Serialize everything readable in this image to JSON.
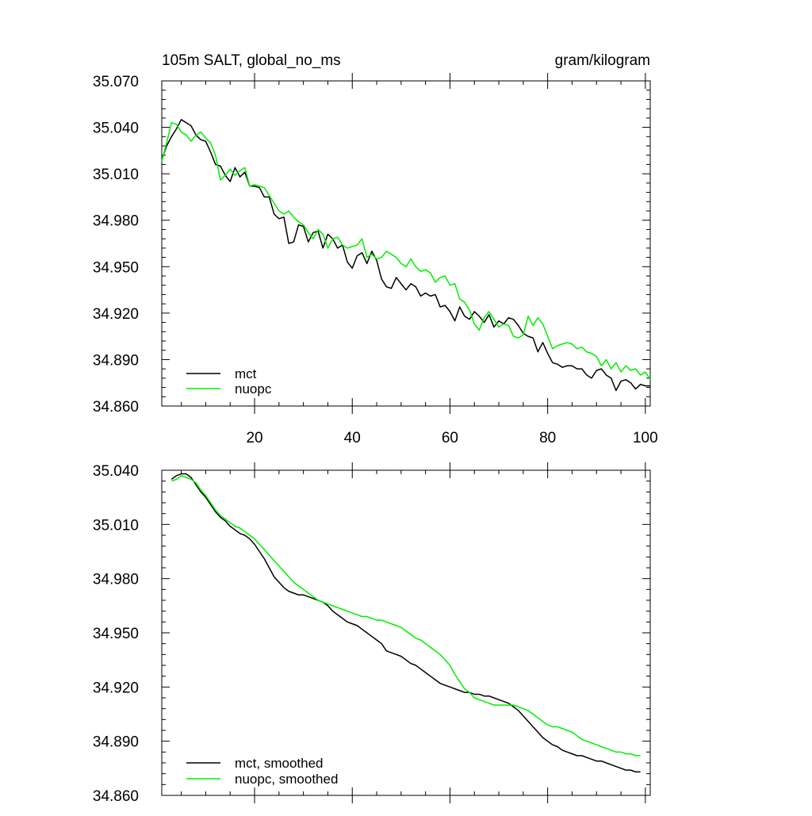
{
  "chart_data": [
    {
      "type": "line",
      "title_left": "105m SALT, global_no_ms",
      "title_right": "gram/kilogram",
      "xlabel": "",
      "ylabel": "",
      "xlim": [
        1,
        101
      ],
      "ylim": [
        34.86,
        35.07
      ],
      "yticks": [
        "35.070",
        "35.040",
        "35.010",
        "34.980",
        "34.950",
        "34.920",
        "34.890",
        "34.860"
      ],
      "xticks": [
        "20",
        "40",
        "60",
        "80",
        "100"
      ],
      "legend": "bottom-left",
      "series": [
        {
          "name": "mct",
          "color": "#000000",
          "x": [
            1,
            2,
            3,
            4,
            5,
            6,
            7,
            8,
            9,
            10,
            11,
            12,
            13,
            14,
            15,
            16,
            17,
            18,
            19,
            20,
            21,
            22,
            23,
            24,
            25,
            26,
            27,
            28,
            29,
            30,
            31,
            32,
            33,
            34,
            35,
            36,
            37,
            38,
            39,
            40,
            41,
            42,
            43,
            44,
            45,
            46,
            47,
            48,
            49,
            50,
            51,
            52,
            53,
            54,
            55,
            56,
            57,
            58,
            59,
            60,
            61,
            62,
            63,
            64,
            65,
            66,
            67,
            68,
            69,
            70,
            71,
            72,
            73,
            74,
            75,
            76,
            77,
            78,
            79,
            80,
            81,
            82,
            83,
            84,
            85,
            86,
            87,
            88,
            89,
            90,
            91,
            92,
            93,
            94,
            95,
            96,
            97,
            98,
            99,
            100,
            101
          ],
          "values": [
            35.019,
            35.028,
            35.034,
            35.039,
            35.045,
            35.043,
            35.041,
            35.035,
            35.032,
            35.031,
            35.024,
            35.016,
            35.015,
            35.009,
            35.005,
            35.014,
            35.008,
            35.011,
            35.002,
            35.002,
            35.001,
            34.995,
            34.995,
            34.984,
            34.981,
            34.982,
            34.965,
            34.966,
            34.977,
            34.976,
            34.966,
            34.972,
            34.973,
            34.962,
            34.971,
            34.968,
            34.962,
            34.964,
            34.953,
            34.949,
            34.957,
            34.959,
            34.952,
            34.96,
            34.954,
            34.942,
            34.937,
            34.936,
            34.943,
            34.939,
            34.935,
            34.939,
            34.937,
            34.931,
            34.933,
            34.931,
            34.932,
            34.924,
            34.925,
            34.921,
            34.915,
            34.924,
            34.918,
            34.916,
            34.921,
            34.918,
            34.914,
            34.919,
            34.911,
            34.915,
            34.913,
            34.917,
            34.916,
            34.912,
            34.907,
            34.905,
            34.904,
            34.895,
            34.901,
            34.894,
            34.888,
            34.887,
            34.885,
            34.886,
            34.886,
            34.884,
            34.884,
            34.88,
            34.878,
            34.883,
            34.884,
            34.88,
            34.878,
            34.87,
            34.876,
            34.877,
            34.875,
            34.871,
            34.874,
            34.873,
            34.873
          ]
        },
        {
          "name": "nuopc",
          "color": "#00ee00",
          "x": [
            1,
            2,
            3,
            4,
            5,
            6,
            7,
            8,
            9,
            10,
            11,
            12,
            13,
            14,
            15,
            16,
            17,
            18,
            19,
            20,
            21,
            22,
            23,
            24,
            25,
            26,
            27,
            28,
            29,
            30,
            31,
            32,
            33,
            34,
            35,
            36,
            37,
            38,
            39,
            40,
            41,
            42,
            43,
            44,
            45,
            46,
            47,
            48,
            49,
            50,
            51,
            52,
            53,
            54,
            55,
            56,
            57,
            58,
            59,
            60,
            61,
            62,
            63,
            64,
            65,
            66,
            67,
            68,
            69,
            70,
            71,
            72,
            73,
            74,
            75,
            76,
            77,
            78,
            79,
            80,
            81,
            82,
            83,
            84,
            85,
            86,
            87,
            88,
            89,
            90,
            91,
            92,
            93,
            94,
            95,
            96,
            97,
            98,
            99,
            100,
            101
          ],
          "values": [
            35.018,
            35.03,
            35.043,
            35.042,
            35.037,
            35.035,
            35.031,
            35.035,
            35.037,
            35.033,
            35.03,
            35.022,
            35.006,
            35.009,
            35.013,
            35.009,
            35.012,
            35.014,
            35.002,
            35.003,
            35.002,
            35.001,
            34.996,
            34.991,
            34.986,
            34.984,
            34.986,
            34.982,
            34.979,
            34.977,
            34.972,
            34.968,
            34.974,
            34.971,
            34.962,
            34.968,
            34.969,
            34.964,
            34.962,
            34.963,
            34.964,
            34.968,
            34.956,
            34.958,
            34.955,
            34.956,
            34.96,
            34.958,
            34.956,
            34.952,
            34.95,
            34.955,
            34.95,
            34.947,
            34.948,
            34.946,
            34.94,
            34.943,
            34.944,
            34.938,
            34.939,
            34.929,
            34.927,
            34.922,
            34.913,
            34.909,
            34.917,
            34.921,
            34.916,
            34.911,
            34.913,
            34.912,
            34.905,
            34.904,
            34.906,
            34.918,
            34.912,
            34.917,
            34.913,
            34.905,
            34.897,
            34.899,
            34.9,
            34.901,
            34.9,
            34.897,
            34.898,
            34.895,
            34.894,
            34.892,
            34.886,
            34.89,
            34.884,
            34.888,
            34.882,
            34.886,
            34.883,
            34.884,
            34.88,
            34.882,
            34.877
          ]
        }
      ]
    },
    {
      "type": "line",
      "title": "",
      "xlabel": "",
      "ylabel": "",
      "xlim": [
        1,
        101
      ],
      "ylim": [
        34.86,
        35.04
      ],
      "yticks": [
        "35.040",
        "35.010",
        "34.980",
        "34.950",
        "34.920",
        "34.890",
        "34.860"
      ],
      "legend": "bottom-left",
      "series": [
        {
          "name": "mct, smoothed",
          "color": "#000000",
          "x": [
            3,
            4,
            5,
            6,
            7,
            8,
            9,
            10,
            11,
            12,
            13,
            14,
            15,
            16,
            17,
            18,
            19,
            20,
            21,
            22,
            23,
            24,
            25,
            26,
            27,
            28,
            29,
            30,
            31,
            32,
            33,
            34,
            35,
            36,
            37,
            38,
            39,
            40,
            41,
            42,
            43,
            44,
            45,
            46,
            47,
            48,
            49,
            50,
            51,
            52,
            53,
            54,
            55,
            56,
            57,
            58,
            59,
            60,
            61,
            62,
            63,
            64,
            65,
            66,
            67,
            68,
            69,
            70,
            71,
            72,
            73,
            74,
            75,
            76,
            77,
            78,
            79,
            80,
            81,
            82,
            83,
            84,
            85,
            86,
            87,
            88,
            89,
            90,
            91,
            92,
            93,
            94,
            95,
            96,
            97,
            98,
            99
          ],
          "values": [
            35.035,
            35.037,
            35.038,
            35.038,
            35.036,
            35.032,
            35.028,
            35.025,
            35.021,
            35.017,
            35.014,
            35.012,
            35.009,
            35.007,
            35.005,
            35.004,
            35.002,
            34.999,
            34.995,
            34.991,
            34.986,
            34.981,
            34.978,
            34.975,
            34.973,
            34.972,
            34.971,
            34.971,
            34.97,
            34.969,
            34.968,
            34.967,
            34.965,
            34.962,
            34.96,
            34.958,
            34.956,
            34.955,
            34.954,
            34.952,
            34.95,
            34.948,
            34.946,
            34.944,
            34.94,
            34.939,
            34.938,
            34.937,
            34.935,
            34.933,
            34.932,
            34.93,
            34.928,
            34.926,
            34.924,
            34.922,
            34.921,
            34.92,
            34.919,
            34.918,
            34.917,
            34.917,
            34.916,
            34.916,
            34.915,
            34.915,
            34.914,
            34.913,
            34.912,
            34.911,
            34.909,
            34.907,
            34.904,
            34.901,
            34.898,
            34.895,
            34.892,
            34.89,
            34.888,
            34.887,
            34.885,
            34.884,
            34.883,
            34.882,
            34.882,
            34.881,
            34.88,
            34.879,
            34.879,
            34.878,
            34.877,
            34.876,
            34.875,
            34.874,
            34.874,
            34.873,
            34.873
          ]
        },
        {
          "name": "nuopc, smoothed",
          "color": "#00ee00",
          "x": [
            3,
            4,
            5,
            6,
            7,
            8,
            9,
            10,
            11,
            12,
            13,
            14,
            15,
            16,
            17,
            18,
            19,
            20,
            21,
            22,
            23,
            24,
            25,
            26,
            27,
            28,
            29,
            30,
            31,
            32,
            33,
            34,
            35,
            36,
            37,
            38,
            39,
            40,
            41,
            42,
            43,
            44,
            45,
            46,
            47,
            48,
            49,
            50,
            51,
            52,
            53,
            54,
            55,
            56,
            57,
            58,
            59,
            60,
            61,
            62,
            63,
            64,
            65,
            66,
            67,
            68,
            69,
            70,
            71,
            72,
            73,
            74,
            75,
            76,
            77,
            78,
            79,
            80,
            81,
            82,
            83,
            84,
            85,
            86,
            87,
            88,
            89,
            90,
            91,
            92,
            93,
            94,
            95,
            96,
            97,
            98,
            99
          ],
          "values": [
            35.034,
            35.035,
            35.037,
            35.036,
            35.035,
            35.033,
            35.029,
            35.026,
            35.022,
            35.018,
            35.015,
            35.013,
            35.011,
            35.009,
            35.008,
            35.006,
            35.004,
            35.002,
            34.999,
            34.996,
            34.993,
            34.99,
            34.987,
            34.984,
            34.981,
            34.978,
            34.976,
            34.974,
            34.972,
            34.97,
            34.968,
            34.967,
            34.966,
            34.965,
            34.964,
            34.963,
            34.962,
            34.961,
            34.96,
            34.959,
            34.959,
            34.958,
            34.957,
            34.957,
            34.956,
            34.955,
            34.954,
            34.953,
            34.951,
            34.949,
            34.947,
            34.946,
            34.944,
            34.942,
            34.94,
            34.938,
            34.935,
            34.932,
            34.927,
            34.923,
            34.919,
            34.917,
            34.914,
            34.913,
            34.912,
            34.911,
            34.91,
            34.91,
            34.91,
            34.91,
            34.91,
            34.909,
            34.908,
            34.907,
            34.905,
            34.903,
            34.901,
            34.899,
            34.898,
            34.898,
            34.897,
            34.896,
            34.895,
            34.893,
            34.891,
            34.89,
            34.889,
            34.888,
            34.887,
            34.886,
            34.885,
            34.884,
            34.884,
            34.883,
            34.883,
            34.882,
            34.882
          ]
        }
      ]
    }
  ]
}
